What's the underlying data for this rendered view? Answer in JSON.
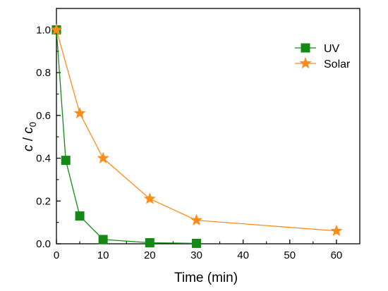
{
  "chart_data": {
    "type": "line",
    "xlabel": "Time (min)",
    "ylabel": {
      "main": "c",
      "slash": " / ",
      "var": "c",
      "sub": "0"
    },
    "xlim": [
      0,
      65
    ],
    "ylim": [
      0,
      1.1
    ],
    "xticks": [
      0,
      10,
      20,
      30,
      40,
      50,
      60
    ],
    "yticks": [
      0.0,
      0.2,
      0.4,
      0.6,
      0.8,
      1.0
    ],
    "yticklabels": [
      "0.0",
      "0.2",
      "0.4",
      "0.6",
      "0.8",
      "1.0"
    ],
    "grid": false,
    "legend_position": "top-right",
    "series": [
      {
        "name": "UV",
        "color": "#138a13",
        "marker": "square",
        "x": [
          0,
          2,
          5,
          10,
          20,
          30
        ],
        "y": [
          1.0,
          0.39,
          0.13,
          0.02,
          0.005,
          0.002
        ]
      },
      {
        "name": "Solar",
        "color": "#ff8c1a",
        "marker": "star",
        "x": [
          0,
          5,
          10,
          20,
          30,
          60
        ],
        "y": [
          1.0,
          0.61,
          0.4,
          0.21,
          0.11,
          0.06
        ]
      }
    ]
  }
}
